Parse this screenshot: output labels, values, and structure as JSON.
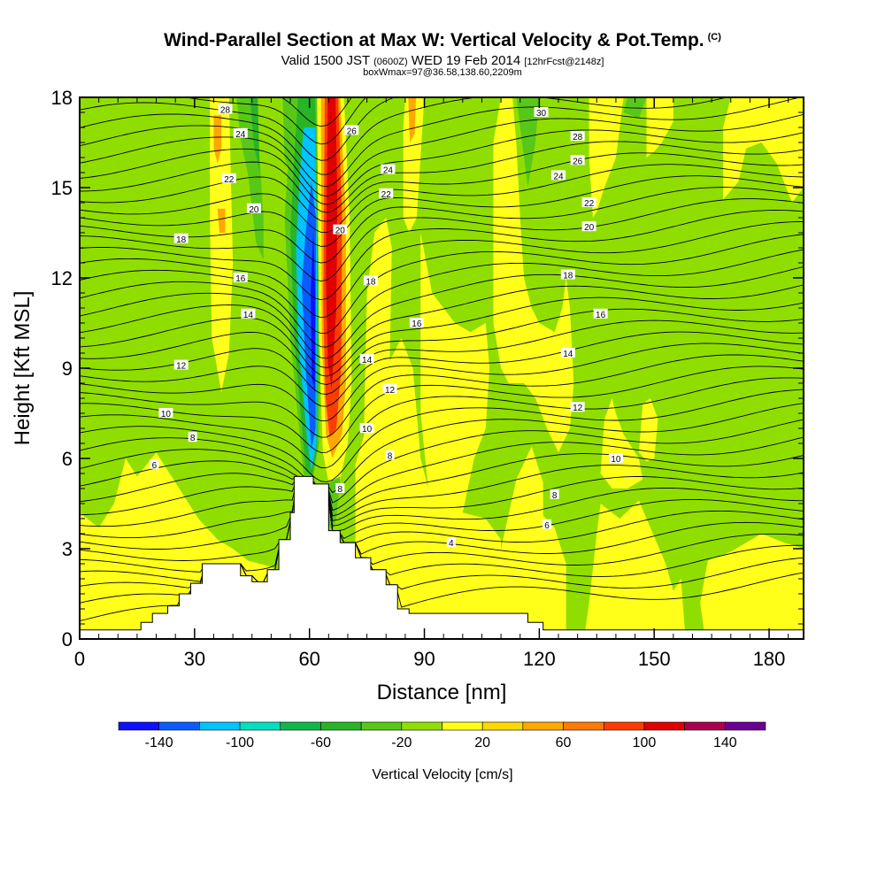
{
  "header": {
    "title": "Wind-Parallel Section at Max W: Vertical Velocity & Pot.Temp.",
    "copyright": "(C)",
    "valid_prefix": "Valid 1500 JST",
    "valid_utc": "(0600Z)",
    "valid_date": "WED 19 Feb 2014",
    "valid_fcst": "[12hrFcst@2148z]",
    "box_info": "boxWmax=97@36.58,138.60,2209m"
  },
  "chart_data": {
    "type": "heatmap",
    "xlabel": "Distance [nm]",
    "ylabel": "Height [Kft MSL]",
    "xlim": [
      0,
      189
    ],
    "ylim": [
      0,
      18
    ],
    "x_ticks": [
      "0",
      "30",
      "60",
      "90",
      "120",
      "150",
      "180"
    ],
    "y_ticks": [
      "0",
      "3",
      "6",
      "9",
      "12",
      "15",
      "18"
    ],
    "colorbar": {
      "title": "Vertical Velocity [cm/s]",
      "labels": [
        "-140",
        "-100",
        "-60",
        "-20",
        "20",
        "60",
        "100",
        "140"
      ],
      "levels": [
        -160,
        -140,
        -120,
        -100,
        -80,
        -60,
        -40,
        -20,
        0,
        20,
        40,
        60,
        80,
        100,
        120,
        140,
        160
      ],
      "colors": [
        "#1010ff",
        "#0a5cff",
        "#00c4ff",
        "#00e0c0",
        "#10b848",
        "#28b428",
        "#58c818",
        "#90de00",
        "#ffff1a",
        "#ffd800",
        "#ffa800",
        "#ff7a00",
        "#ff3c00",
        "#e00000",
        "#a8004c",
        "#6a0094"
      ]
    },
    "terrain_profile": [
      [
        0,
        0.3
      ],
      [
        16,
        0.3
      ],
      [
        16,
        0.55
      ],
      [
        19,
        0.55
      ],
      [
        19,
        0.85
      ],
      [
        23,
        0.85
      ],
      [
        23,
        1.1
      ],
      [
        26,
        1.1
      ],
      [
        26,
        1.5
      ],
      [
        29,
        1.5
      ],
      [
        29,
        1.85
      ],
      [
        32,
        1.85
      ],
      [
        32,
        2.5
      ],
      [
        42,
        2.5
      ],
      [
        42,
        2.1
      ],
      [
        45,
        2.1
      ],
      [
        45,
        1.9
      ],
      [
        49,
        1.9
      ],
      [
        49,
        2.3
      ],
      [
        52,
        2.3
      ],
      [
        52,
        3.3
      ],
      [
        55,
        3.3
      ],
      [
        55,
        4.2
      ],
      [
        56,
        4.2
      ],
      [
        56,
        5.4
      ],
      [
        61,
        5.4
      ],
      [
        61,
        5.15
      ],
      [
        65,
        5.15
      ],
      [
        65,
        3.6
      ],
      [
        68,
        3.6
      ],
      [
        68,
        3.2
      ],
      [
        72,
        3.2
      ],
      [
        72,
        2.7
      ],
      [
        76,
        2.7
      ],
      [
        76,
        2.3
      ],
      [
        80,
        2.3
      ],
      [
        80,
        1.8
      ],
      [
        83,
        1.8
      ],
      [
        83,
        1.0
      ],
      [
        86,
        1.0
      ],
      [
        86,
        0.85
      ],
      [
        117,
        0.85
      ],
      [
        117,
        0.55
      ],
      [
        121,
        0.55
      ],
      [
        121,
        0.3
      ],
      [
        189,
        0.3
      ]
    ],
    "isentrope_labels": [
      {
        "text": "28",
        "x": 38,
        "y": 17.6
      },
      {
        "text": "24",
        "x": 42,
        "y": 16.8
      },
      {
        "text": "22",
        "x": 39,
        "y": 15.3
      },
      {
        "text": "20",
        "x": 45.5,
        "y": 14.3
      },
      {
        "text": "18",
        "x": 26.5,
        "y": 13.3
      },
      {
        "text": "16",
        "x": 42,
        "y": 12.0
      },
      {
        "text": "14",
        "x": 44,
        "y": 10.8
      },
      {
        "text": "12",
        "x": 26.5,
        "y": 9.1
      },
      {
        "text": "10",
        "x": 22.5,
        "y": 7.5
      },
      {
        "text": "8",
        "x": 29.5,
        "y": 6.7
      },
      {
        "text": "6",
        "x": 19.5,
        "y": 5.8
      },
      {
        "text": "26",
        "x": 71,
        "y": 16.9
      },
      {
        "text": "24",
        "x": 80.5,
        "y": 15.6
      },
      {
        "text": "22",
        "x": 80,
        "y": 14.8
      },
      {
        "text": "20",
        "x": 68,
        "y": 13.6
      },
      {
        "text": "18",
        "x": 76,
        "y": 11.9
      },
      {
        "text": "16",
        "x": 88,
        "y": 10.5
      },
      {
        "text": "14",
        "x": 75,
        "y": 9.3
      },
      {
        "text": "12",
        "x": 81,
        "y": 8.3
      },
      {
        "text": "10",
        "x": 75,
        "y": 7.0
      },
      {
        "text": "8",
        "x": 81,
        "y": 6.1
      },
      {
        "text": "8",
        "x": 68,
        "y": 5.0
      },
      {
        "text": "4",
        "x": 97,
        "y": 3.2
      },
      {
        "text": "30",
        "x": 120.5,
        "y": 17.5
      },
      {
        "text": "28",
        "x": 130,
        "y": 16.7
      },
      {
        "text": "26",
        "x": 130,
        "y": 15.9
      },
      {
        "text": "24",
        "x": 125,
        "y": 15.4
      },
      {
        "text": "22",
        "x": 133,
        "y": 14.5
      },
      {
        "text": "20",
        "x": 133,
        "y": 13.7
      },
      {
        "text": "18",
        "x": 127.5,
        "y": 12.1
      },
      {
        "text": "16",
        "x": 136,
        "y": 10.8
      },
      {
        "text": "14",
        "x": 127.5,
        "y": 9.5
      },
      {
        "text": "12",
        "x": 130,
        "y": 7.7
      },
      {
        "text": "10",
        "x": 140,
        "y": 6.0
      },
      {
        "text": "8",
        "x": 124,
        "y": 4.8
      },
      {
        "text": "6",
        "x": 122,
        "y": 3.8
      }
    ]
  }
}
